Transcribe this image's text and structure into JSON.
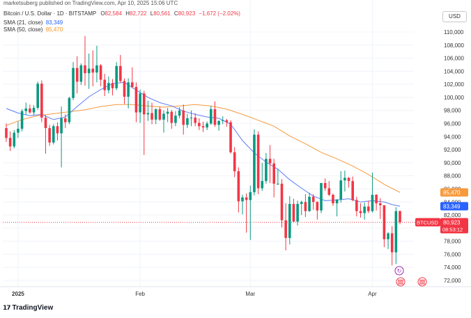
{
  "watermark": "marketsuberg published on TradingView.com, Apr 10, 2025 15:06 UTC",
  "symbol": {
    "name": "Bitcoin / U.S. Dollar · 1D · BITSTAMP",
    "o_label": "O",
    "o": "82,584",
    "h_label": "H",
    "h": "82,722",
    "l_label": "L",
    "l": "80,561",
    "c_label": "C",
    "c": "80,923",
    "change": "−1,672 (−2.02%)"
  },
  "indicators": [
    {
      "label": "SMA (21, close)",
      "value": "83,349",
      "color": "#2962ff"
    },
    {
      "label": "SMA (50, close)",
      "value": "85,470",
      "color": "#f7931a"
    }
  ],
  "currency_button": "USD",
  "logo_text": "TradingView",
  "price_tags": {
    "sma50": "85,470",
    "sma21": "83,349",
    "ticker": "BTCUSD",
    "price": "80,923",
    "countdown": "08:53:12"
  },
  "colors": {
    "up": "#089981",
    "down": "#f23645",
    "sma21": "#5b7cfa",
    "sma50": "#f79a3e",
    "grid": "#f0f3fa",
    "axis_text": "#333333"
  },
  "chart_data": {
    "type": "candlestick",
    "title": "Bitcoin / U.S. Dollar · 1D · BITSTAMP",
    "ylim": [
      71000,
      111000
    ],
    "y_ticks": [
      72000,
      74000,
      76000,
      78000,
      80000,
      82000,
      84000,
      86000,
      88000,
      90000,
      92000,
      94000,
      96000,
      98000,
      100000,
      102000,
      104000,
      106000,
      108000,
      110000
    ],
    "y_tick_labels": [
      "72,000",
      "74,000",
      "76,000",
      "78,000",
      "80,000",
      "82,000",
      "84,000",
      "86,000",
      "88,000",
      "90,000",
      "92,000",
      "94,000",
      "96,000",
      "98,000",
      "100,000",
      "102,000",
      "104,000",
      "106,000",
      "108,000",
      "110,000"
    ],
    "x_labels": [
      {
        "label": "2025",
        "index": 3
      },
      {
        "label": "Feb",
        "index": 34
      },
      {
        "label": "Mar",
        "index": 62
      },
      {
        "label": "Apr",
        "index": 93
      }
    ],
    "candles": [
      [
        95300,
        96000,
        93200,
        93800
      ],
      [
        93800,
        94800,
        91800,
        92500
      ],
      [
        92500,
        95000,
        92200,
        94600
      ],
      [
        94600,
        96300,
        93800,
        95200
      ],
      [
        95200,
        98200,
        94800,
        97900
      ],
      [
        97900,
        99200,
        97300,
        98300
      ],
      [
        98300,
        98900,
        97500,
        97700
      ],
      [
        97700,
        98800,
        97300,
        98400
      ],
      [
        98400,
        102400,
        98100,
        102100
      ],
      [
        102100,
        102600,
        96200,
        96900
      ],
      [
        96900,
        97300,
        91400,
        95300
      ],
      [
        95300,
        95800,
        92600,
        93100
      ],
      [
        93100,
        95900,
        92800,
        95600
      ],
      [
        95600,
        96200,
        93400,
        94500
      ],
      [
        94500,
        98600,
        89300,
        96800
      ],
      [
        96800,
        97400,
        95300,
        96200
      ],
      [
        96200,
        100100,
        95900,
        99900
      ],
      [
        99900,
        105400,
        99600,
        104500
      ],
      [
        104500,
        106300,
        100600,
        102400
      ],
      [
        102400,
        105200,
        101900,
        104900
      ],
      [
        104900,
        109400,
        101800,
        103700
      ],
      [
        103700,
        106700,
        101300,
        104400
      ],
      [
        104400,
        107200,
        101700,
        103800
      ],
      [
        103800,
        107900,
        102300,
        104900
      ],
      [
        104900,
        105100,
        101700,
        102700
      ],
      [
        102700,
        103600,
        100200,
        101100
      ],
      [
        101100,
        103200,
        100600,
        102200
      ],
      [
        102200,
        102800,
        100300,
        101400
      ],
      [
        101400,
        105400,
        101100,
        104800
      ],
      [
        104800,
        106500,
        102200,
        102500
      ],
      [
        102500,
        102900,
        99000,
        100100
      ],
      [
        100100,
        102900,
        98300,
        102300
      ],
      [
        102300,
        104600,
        101400,
        101600
      ],
      [
        101600,
        102300,
        96200,
        97700
      ],
      [
        97700,
        101200,
        96100,
        100600
      ],
      [
        100600,
        101000,
        91200,
        97400
      ],
      [
        97400,
        99500,
        96400,
        97600
      ],
      [
        97600,
        99200,
        95900,
        96600
      ],
      [
        96600,
        98300,
        95900,
        98200
      ],
      [
        98200,
        98600,
        96400,
        96600
      ],
      [
        96600,
        98000,
        94600,
        97500
      ],
      [
        97500,
        98400,
        96200,
        97800
      ],
      [
        97800,
        98100,
        95200,
        96100
      ],
      [
        96100,
        97900,
        95600,
        97200
      ],
      [
        97200,
        98500,
        96800,
        98000
      ],
      [
        98000,
        98900,
        94300,
        95800
      ],
      [
        95800,
        97500,
        95300,
        96800
      ],
      [
        96800,
        98000,
        95600,
        96900
      ],
      [
        96900,
        97600,
        95600,
        96100
      ],
      [
        96100,
        96800,
        95000,
        95600
      ],
      [
        95600,
        96300,
        94700,
        95400
      ],
      [
        95400,
        96300,
        95000,
        96000
      ],
      [
        96000,
        98700,
        95800,
        98200
      ],
      [
        98200,
        99400,
        95500,
        95800
      ],
      [
        95800,
        96500,
        94900,
        96400
      ],
      [
        96400,
        97100,
        95900,
        96500
      ],
      [
        96500,
        96700,
        95500,
        96200
      ],
      [
        96200,
        96500,
        91400,
        91600
      ],
      [
        91600,
        92400,
        87800,
        88700
      ],
      [
        88700,
        89300,
        82400,
        84100
      ],
      [
        84100,
        85100,
        82100,
        84700
      ],
      [
        84700,
        85300,
        79300,
        84300
      ],
      [
        84300,
        86500,
        78200,
        85500
      ],
      [
        85500,
        95100,
        85000,
        94300
      ],
      [
        94300,
        94800,
        85200,
        86100
      ],
      [
        86100,
        90000,
        85700,
        87200
      ],
      [
        87200,
        91500,
        86800,
        90600
      ],
      [
        90600,
        92700,
        86900,
        89900
      ],
      [
        89900,
        90600,
        84700,
        86800
      ],
      [
        86800,
        89100,
        86600,
        86800
      ],
      [
        86800,
        87500,
        80100,
        81200
      ],
      [
        81200,
        83800,
        76600,
        78500
      ],
      [
        78500,
        84900,
        77500,
        83700
      ],
      [
        83700,
        84500,
        80900,
        81000
      ],
      [
        81000,
        84200,
        80400,
        83700
      ],
      [
        83700,
        84200,
        82000,
        84000
      ],
      [
        84000,
        85200,
        81700,
        82600
      ],
      [
        82600,
        85400,
        82500,
        84800
      ],
      [
        84800,
        85200,
        82800,
        84000
      ],
      [
        84000,
        84100,
        81300,
        82700
      ],
      [
        82700,
        86900,
        82300,
        86900
      ],
      [
        86900,
        87600,
        85700,
        86100
      ],
      [
        86100,
        87200,
        84900,
        85100
      ],
      [
        85100,
        85300,
        83400,
        83800
      ],
      [
        83800,
        84400,
        81800,
        84400
      ],
      [
        84400,
        88700,
        83900,
        87300
      ],
      [
        87300,
        88800,
        85600,
        87700
      ],
      [
        87700,
        87800,
        86200,
        87200
      ],
      [
        87200,
        87900,
        84100,
        84300
      ],
      [
        84300,
        84800,
        81800,
        82600
      ],
      [
        82600,
        83800,
        81600,
        82300
      ],
      [
        82300,
        83900,
        81300,
        83300
      ],
      [
        83300,
        84200,
        82300,
        82600
      ],
      [
        82600,
        88500,
        82400,
        85100
      ],
      [
        85100,
        85200,
        82700,
        83800
      ],
      [
        83800,
        84600,
        81400,
        83500
      ],
      [
        83500,
        83500,
        77100,
        78300
      ],
      [
        78300,
        79400,
        76800,
        79200
      ],
      [
        79200,
        80300,
        74300,
        76300
      ],
      [
        76300,
        83200,
        74500,
        82600
      ],
      [
        82600,
        82700,
        80600,
        80900
      ]
    ],
    "sma21": [
      [
        0,
        98300
      ],
      [
        3,
        97600
      ],
      [
        6,
        97200
      ],
      [
        9,
        97400
      ],
      [
        12,
        96600
      ],
      [
        15,
        97000
      ],
      [
        18,
        98600
      ],
      [
        21,
        100100
      ],
      [
        24,
        101200
      ],
      [
        27,
        102100
      ],
      [
        30,
        102300
      ],
      [
        33,
        101100
      ],
      [
        36,
        100000
      ],
      [
        39,
        99200
      ],
      [
        42,
        98700
      ],
      [
        45,
        97900
      ],
      [
        48,
        97400
      ],
      [
        51,
        97000
      ],
      [
        54,
        96800
      ],
      [
        57,
        95900
      ],
      [
        60,
        93400
      ],
      [
        63,
        91500
      ],
      [
        66,
        90100
      ],
      [
        69,
        89000
      ],
      [
        72,
        87400
      ],
      [
        75,
        86100
      ],
      [
        78,
        84900
      ],
      [
        81,
        84200
      ],
      [
        84,
        84300
      ],
      [
        87,
        84500
      ],
      [
        90,
        84000
      ],
      [
        93,
        84200
      ],
      [
        96,
        84000
      ],
      [
        98,
        83600
      ],
      [
        100,
        83349
      ]
    ],
    "sma50": [
      [
        0,
        95700
      ],
      [
        4,
        96600
      ],
      [
        8,
        97200
      ],
      [
        12,
        97500
      ],
      [
        16,
        97800
      ],
      [
        20,
        98100
      ],
      [
        24,
        98600
      ],
      [
        28,
        98900
      ],
      [
        32,
        98900
      ],
      [
        36,
        98700
      ],
      [
        40,
        98500
      ],
      [
        44,
        98700
      ],
      [
        48,
        98900
      ],
      [
        52,
        98700
      ],
      [
        56,
        98200
      ],
      [
        60,
        97400
      ],
      [
        64,
        96500
      ],
      [
        68,
        95600
      ],
      [
        72,
        94100
      ],
      [
        76,
        92900
      ],
      [
        80,
        91600
      ],
      [
        84,
        90600
      ],
      [
        88,
        89500
      ],
      [
        92,
        88200
      ],
      [
        96,
        86700
      ],
      [
        100,
        85470
      ]
    ]
  }
}
